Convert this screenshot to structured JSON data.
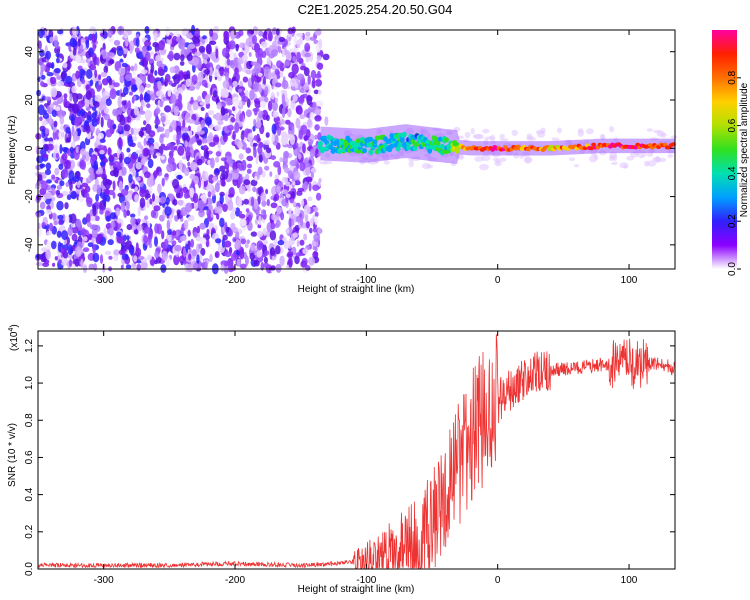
{
  "title": "C2E1.2025.254.20.50.G04",
  "colors": {
    "snr_line": "#ee3333",
    "spec_low": "#7a1cf0",
    "axis": "#000000"
  },
  "chart_data": [
    {
      "type": "heatmap",
      "title": "",
      "xlabel": "Height of straight line (km)",
      "ylabel": "Frequency (Hz)",
      "xlim": [
        -350,
        135
      ],
      "ylim": [
        -50,
        49
      ],
      "xticks": [
        -300,
        -200,
        -100,
        0,
        100
      ],
      "yticks": [
        -40,
        -20,
        0,
        20,
        40
      ],
      "colorbar": {
        "label": "Normalized spectral amplitude",
        "range": [
          0,
          1
        ],
        "ticks": [
          0.0,
          0.2,
          0.4,
          0.6,
          0.8
        ],
        "colormap": [
          "#ffffff",
          "#8b00ff",
          "#3020ff",
          "#00a0ff",
          "#00e0b0",
          "#30e020",
          "#b0e000",
          "#ffd000",
          "#ff7000",
          "#ff2000",
          "#ff00a0"
        ]
      },
      "signal_track": [
        {
          "x": -135,
          "freq": 2,
          "amp": 0.35
        },
        {
          "x": -100,
          "freq": 1,
          "amp": 0.4
        },
        {
          "x": -70,
          "freq": 3,
          "amp": 0.35
        },
        {
          "x": -40,
          "freq": 1,
          "amp": 0.4
        },
        {
          "x": -20,
          "freq": 0,
          "amp": 0.85
        },
        {
          "x": 0,
          "freq": 0,
          "amp": 0.9
        },
        {
          "x": 40,
          "freq": 0,
          "amp": 0.7
        },
        {
          "x": 80,
          "freq": 1,
          "amp": 0.9
        },
        {
          "x": 100,
          "freq": 1,
          "amp": 0.95
        },
        {
          "x": 120,
          "freq": 1,
          "amp": 0.85
        },
        {
          "x": 135,
          "freq": 1,
          "amp": 0.8
        }
      ]
    },
    {
      "type": "line",
      "title": "",
      "xlabel": "Height of straight line (km)",
      "ylabel": "SNR (10 * v/v)",
      "yscale_label": "(x10",
      "yscale_exp": "4",
      "yscale_close": ")",
      "xlim": [
        -350,
        135
      ],
      "ylim": [
        0,
        1.28
      ],
      "xticks": [
        -300,
        -200,
        -100,
        0,
        100
      ],
      "yticks": [
        0.0,
        0.2,
        0.4,
        0.6,
        0.8,
        1.0,
        1.2
      ],
      "series": [
        {
          "x": [
            -350,
            -300,
            -250,
            -200,
            -150,
            -120,
            -100,
            -80,
            -60,
            -50,
            -40,
            -30,
            -20,
            -10,
            0,
            10,
            20,
            30,
            40,
            60,
            80,
            100,
            120,
            135
          ],
          "values": [
            0.02,
            0.02,
            0.02,
            0.03,
            0.02,
            0.03,
            0.05,
            0.1,
            0.16,
            0.25,
            0.4,
            0.55,
            0.7,
            0.82,
            0.9,
            0.96,
            1.02,
            1.05,
            1.07,
            1.08,
            1.1,
            1.1,
            1.1,
            1.08
          ]
        }
      ]
    }
  ]
}
